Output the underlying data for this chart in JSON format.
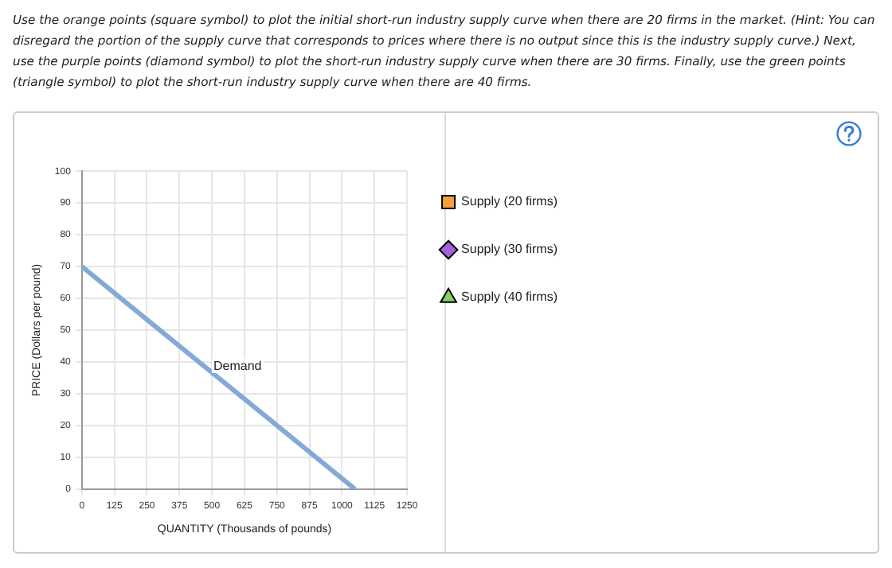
{
  "chart_data": {
    "type": "line",
    "title": "Use the orange points (square symbol) to plot the initial short-run industry supply curve when there are 20 firms in the market. (Hint: You can disregard the portion of the supply curve that corresponds to prices where there is no output since this is the industry supply curve.) Next, use the purple points (diamond symbol) to plot the short-run industry supply curve when there are 30 firms. Finally, use the green points (triangle symbol) to plot the short-run industry supply curve when there are 40 firms.",
    "xlabel": "QUANTITY (Thousands of pounds)",
    "ylabel": "PRICE (Dollars per pound)",
    "xlim": [
      0,
      1250
    ],
    "xticks": [
      0,
      125,
      250,
      375,
      500,
      625,
      750,
      875,
      1000,
      1125,
      1250
    ],
    "ylim": [
      0,
      100
    ],
    "yticks": [
      0,
      10,
      20,
      30,
      40,
      50,
      60,
      70,
      80,
      90,
      100
    ],
    "grid": true,
    "legend": "right",
    "series": [
      {
        "name": "Demand",
        "color": "#84a9d6",
        "x": [
          0,
          1050
        ],
        "values": [
          70,
          0
        ],
        "marker": "none"
      },
      {
        "name": "Supply (20 firms)",
        "color": "#f5a03c",
        "marker": "square"
      },
      {
        "name": "Supply (30 firms)",
        "color": "#a064d8",
        "marker": "diamond"
      },
      {
        "name": "Supply (40 firms)",
        "color": "#84d060",
        "marker": "triangle"
      }
    ]
  }
}
